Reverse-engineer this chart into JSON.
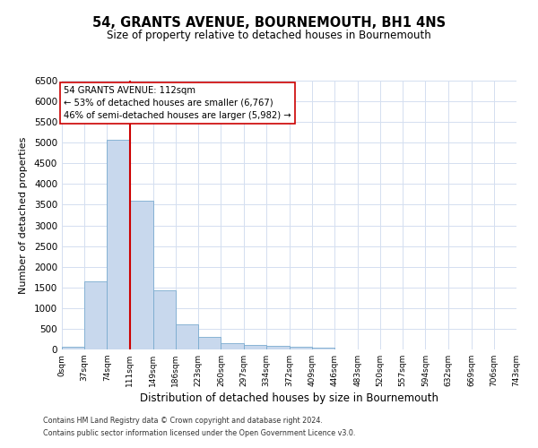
{
  "title": "54, GRANTS AVENUE, BOURNEMOUTH, BH1 4NS",
  "subtitle": "Size of property relative to detached houses in Bournemouth",
  "xlabel": "Distribution of detached houses by size in Bournemouth",
  "ylabel": "Number of detached properties",
  "bin_edges": [
    0,
    37,
    74,
    111,
    149,
    186,
    223,
    260,
    297,
    334,
    372,
    409,
    446,
    483,
    520,
    557,
    594,
    632,
    669,
    706,
    743
  ],
  "bin_counts": [
    75,
    1650,
    5080,
    3600,
    1430,
    610,
    300,
    155,
    110,
    80,
    60,
    50,
    0,
    0,
    0,
    0,
    0,
    0,
    0,
    0
  ],
  "red_line_x": 112,
  "annotation_title": "54 GRANTS AVENUE: 112sqm",
  "annotation_line1": "← 53% of detached houses are smaller (6,767)",
  "annotation_line2": "46% of semi-detached houses are larger (5,982) →",
  "bar_color": "#c8d8ed",
  "bar_edge_color": "#7aabcf",
  "red_line_color": "#cc0000",
  "box_edge_color": "#cc0000",
  "ylim": [
    0,
    6500
  ],
  "yticks": [
    0,
    500,
    1000,
    1500,
    2000,
    2500,
    3000,
    3500,
    4000,
    4500,
    5000,
    5500,
    6000,
    6500
  ],
  "grid_color": "#d4dff0",
  "footer1": "Contains HM Land Registry data © Crown copyright and database right 2024.",
  "footer2": "Contains public sector information licensed under the Open Government Licence v3.0."
}
